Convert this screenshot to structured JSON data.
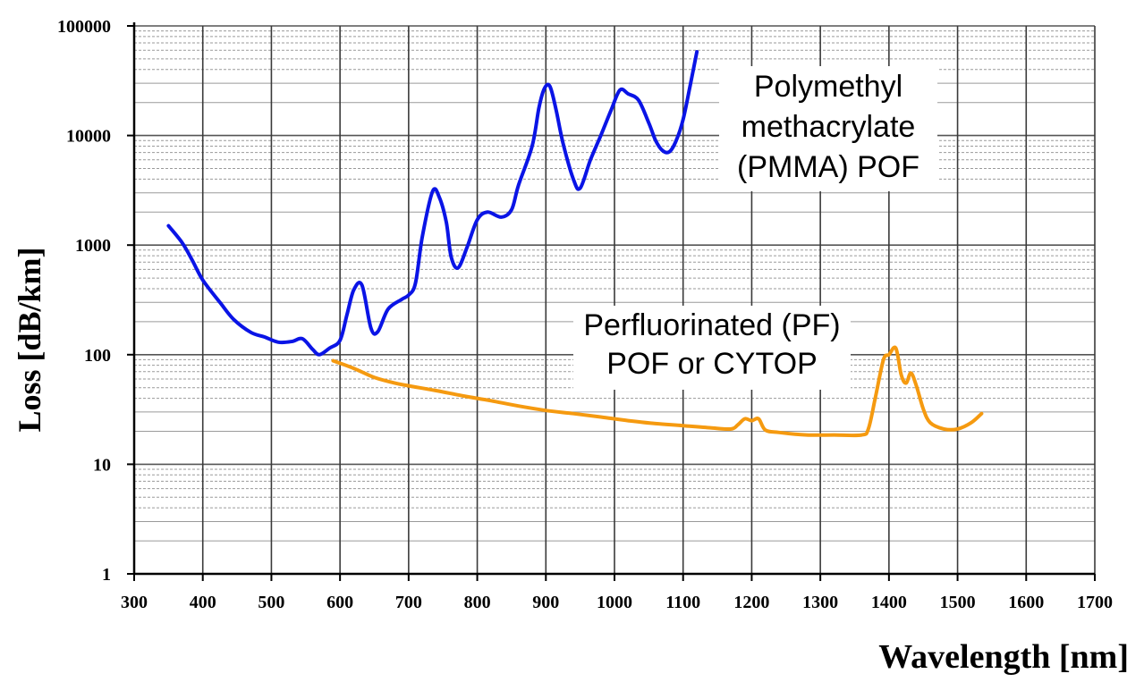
{
  "chart_data": {
    "type": "line",
    "title": "",
    "xlabel": "Wavelength [nm]",
    "ylabel": "Loss [dB/km]",
    "xlim": [
      300,
      1700
    ],
    "ylim": [
      1,
      100000
    ],
    "y_scale": "log",
    "grid": true,
    "x_ticks": [
      "300",
      "400",
      "500",
      "600",
      "700",
      "800",
      "900",
      "1000",
      "1100",
      "1200",
      "1300",
      "1400",
      "1500",
      "1600",
      "1700"
    ],
    "y_ticks": [
      "1",
      "10",
      "100",
      "1000",
      "10000",
      "100000"
    ],
    "annotations": [
      {
        "lines": [
          "Polymethyl",
          "methacrylate",
          "(PMMA) POF"
        ],
        "series": 0
      },
      {
        "lines": [
          "Perfluorinated (PF)",
          "POF or CYTOP"
        ],
        "series": 1
      }
    ],
    "series": [
      {
        "color": "#0a14e6",
        "points": [
          [
            350,
            1500
          ],
          [
            370,
            1050
          ],
          [
            385,
            720
          ],
          [
            400,
            480
          ],
          [
            425,
            300
          ],
          [
            445,
            210
          ],
          [
            470,
            160
          ],
          [
            490,
            145
          ],
          [
            510,
            130
          ],
          [
            530,
            132
          ],
          [
            545,
            140
          ],
          [
            560,
            112
          ],
          [
            570,
            100
          ],
          [
            585,
            115
          ],
          [
            600,
            135
          ],
          [
            610,
            230
          ],
          [
            620,
            390
          ],
          [
            632,
            430
          ],
          [
            645,
            175
          ],
          [
            655,
            162
          ],
          [
            670,
            260
          ],
          [
            690,
            320
          ],
          [
            700,
            350
          ],
          [
            710,
            450
          ],
          [
            720,
            1200
          ],
          [
            735,
            3100
          ],
          [
            745,
            2700
          ],
          [
            755,
            1600
          ],
          [
            762,
            780
          ],
          [
            772,
            620
          ],
          [
            785,
            950
          ],
          [
            800,
            1700
          ],
          [
            815,
            2000
          ],
          [
            835,
            1800
          ],
          [
            850,
            2100
          ],
          [
            860,
            3500
          ],
          [
            880,
            8000
          ],
          [
            890,
            18000
          ],
          [
            898,
            27000
          ],
          [
            906,
            28000
          ],
          [
            915,
            17000
          ],
          [
            925,
            8500
          ],
          [
            940,
            4000
          ],
          [
            950,
            3300
          ],
          [
            965,
            6000
          ],
          [
            980,
            10000
          ],
          [
            995,
            17000
          ],
          [
            1008,
            26000
          ],
          [
            1020,
            24000
          ],
          [
            1035,
            21000
          ],
          [
            1050,
            13000
          ],
          [
            1060,
            9000
          ],
          [
            1070,
            7300
          ],
          [
            1080,
            7100
          ],
          [
            1090,
            9000
          ],
          [
            1100,
            14000
          ],
          [
            1110,
            28000
          ],
          [
            1120,
            58000
          ]
        ]
      },
      {
        "color": "#f59a10",
        "points": [
          [
            590,
            88
          ],
          [
            620,
            75
          ],
          [
            650,
            62
          ],
          [
            680,
            55
          ],
          [
            700,
            52
          ],
          [
            740,
            47
          ],
          [
            780,
            42
          ],
          [
            820,
            38
          ],
          [
            860,
            34
          ],
          [
            900,
            31
          ],
          [
            940,
            29
          ],
          [
            980,
            27
          ],
          [
            1020,
            25
          ],
          [
            1060,
            23.5
          ],
          [
            1100,
            22.5
          ],
          [
            1140,
            21.5
          ],
          [
            1170,
            21
          ],
          [
            1180,
            23
          ],
          [
            1190,
            26
          ],
          [
            1200,
            25
          ],
          [
            1210,
            26
          ],
          [
            1220,
            20.5
          ],
          [
            1240,
            19.5
          ],
          [
            1280,
            18.5
          ],
          [
            1320,
            18.5
          ],
          [
            1360,
            18.5
          ],
          [
            1370,
            21
          ],
          [
            1380,
            40
          ],
          [
            1392,
            90
          ],
          [
            1400,
            100
          ],
          [
            1410,
            115
          ],
          [
            1418,
            65
          ],
          [
            1425,
            55
          ],
          [
            1432,
            68
          ],
          [
            1440,
            52
          ],
          [
            1450,
            32
          ],
          [
            1460,
            24
          ],
          [
            1480,
            21
          ],
          [
            1500,
            21
          ],
          [
            1520,
            24
          ],
          [
            1535,
            29
          ]
        ]
      }
    ]
  }
}
